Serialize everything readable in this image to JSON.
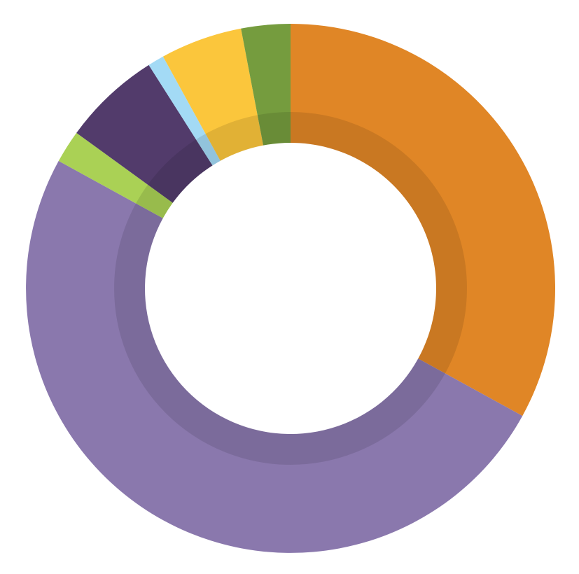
{
  "chart_data": {
    "type": "donut",
    "values": [
      33,
      50,
      2,
      6,
      1,
      5,
      3
    ],
    "colors": [
      "#e08626",
      "#8a78ad",
      "#aad155",
      "#523b6b",
      "#a3daf5",
      "#fbc63c",
      "#759c3e"
    ]
  }
}
